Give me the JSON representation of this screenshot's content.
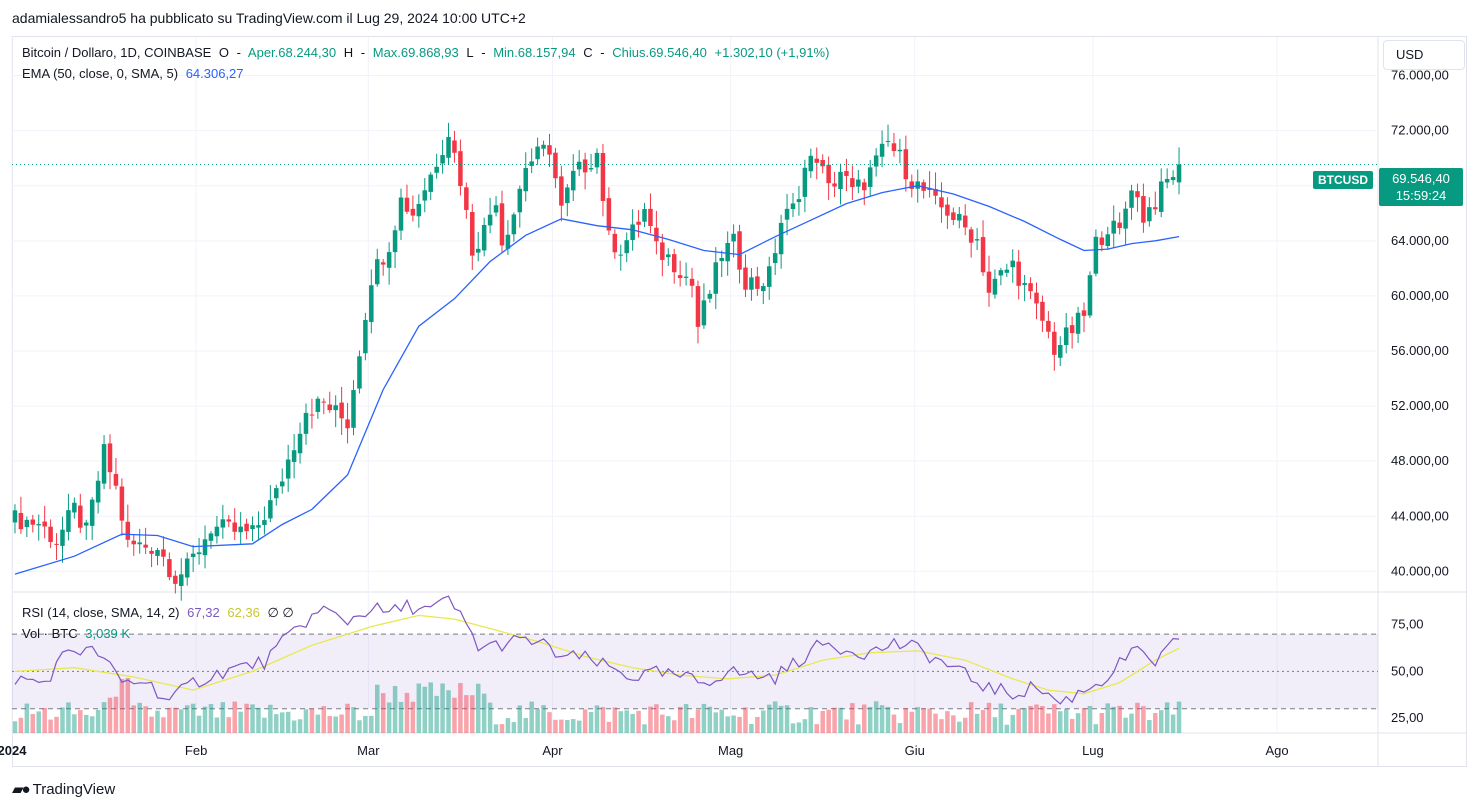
{
  "publisher_line": "adamialessandro5 ha pubblicato su TradingView.com il Lug 29, 2024 10:00 UTC+2",
  "legend": {
    "symbol": "Bitcoin / Dollaro, 1D, COINBASE",
    "o_label": "O",
    "open": "Aper.68.244,30",
    "h_label": "H",
    "high": "Max.69.868,93",
    "l_label": "L",
    "low": "Min.68.157,94",
    "c_label": "C",
    "close": "Chius.69.546,40",
    "change": "+1.302,10 (+1,91%)",
    "ema_label": "EMA (50, close, 0, SMA, 5)",
    "ema_value": "64.306,27",
    "rsi_label": "RSI (14, close, SMA, 14, 2)",
    "rsi_value": "67,32",
    "rsi_ma_value": "62,36",
    "rsi_extra": "∅ ∅",
    "vol_label": "Vol · BTC",
    "vol_value": "3,039 K"
  },
  "currency_button": "USD",
  "symbol_tag": "BTCUSD",
  "price_tag": {
    "price": "69.546,40",
    "countdown": "15:59:24"
  },
  "logo_text": "TradingView",
  "colors": {
    "up": "#089981",
    "down": "#f23645",
    "ema": "#2962ff",
    "rsi": "#7e57c2",
    "rsi_ma": "#e8e84f"
  },
  "chart_data": [
    {
      "type": "candlestick",
      "title": "Bitcoin / Dollaro, 1D, COINBASE",
      "y_ticks": [
        "76.000,00",
        "72.000,00",
        "68.000,00",
        "64.000,00",
        "60.000,00",
        "56.000,00",
        "52.000,00",
        "48.000,00",
        "44.000,00",
        "40.000,00"
      ],
      "ylim": [
        38500,
        78800
      ],
      "x_labels": [
        "2024",
        "Feb",
        "Mar",
        "Apr",
        "Mag",
        "Giu",
        "Lug",
        "Ago"
      ],
      "x_label_days": [
        0,
        31,
        60,
        91,
        121,
        152,
        182,
        213
      ],
      "last_price": 69546.4,
      "close_path": [
        [
          0,
          43800
        ],
        [
          4,
          43500
        ],
        [
          7,
          42200
        ],
        [
          10,
          44500
        ],
        [
          12,
          42800
        ],
        [
          15,
          48600
        ],
        [
          17,
          46000
        ],
        [
          19,
          41900
        ],
        [
          24,
          41800
        ],
        [
          27,
          39600
        ],
        [
          29,
          40200
        ],
        [
          33,
          43200
        ],
        [
          40,
          42700
        ],
        [
          44,
          45600
        ],
        [
          46,
          48100
        ],
        [
          49,
          51800
        ],
        [
          52,
          52200
        ],
        [
          56,
          50800
        ],
        [
          60,
          61400
        ],
        [
          63,
          63800
        ],
        [
          65,
          67000
        ],
        [
          67,
          66000
        ],
        [
          70,
          68800
        ],
        [
          73,
          72000
        ],
        [
          75,
          68500
        ],
        [
          77,
          63400
        ],
        [
          79,
          64800
        ],
        [
          81,
          67200
        ],
        [
          82,
          64000
        ],
        [
          84,
          66100
        ],
        [
          86,
          69500
        ],
        [
          88,
          70200
        ],
        [
          90,
          70800
        ],
        [
          92,
          66200
        ],
        [
          94,
          68700
        ],
        [
          96,
          69500
        ],
        [
          98,
          70400
        ],
        [
          100,
          64100
        ],
        [
          102,
          63500
        ],
        [
          104,
          64600
        ],
        [
          106,
          66200
        ],
        [
          108,
          63300
        ],
        [
          110,
          62800
        ],
        [
          112,
          62000
        ],
        [
          114,
          60800
        ],
        [
          115,
          57800
        ],
        [
          117,
          60300
        ],
        [
          119,
          63100
        ],
        [
          121,
          63800
        ],
        [
          123,
          61200
        ],
        [
          125,
          60800
        ],
        [
          127,
          61500
        ],
        [
          129,
          65400
        ],
        [
          131,
          66300
        ],
        [
          133,
          69200
        ],
        [
          135,
          70200
        ],
        [
          137,
          67700
        ],
        [
          139,
          69100
        ],
        [
          141,
          67500
        ],
        [
          143,
          68300
        ],
        [
          145,
          69700
        ],
        [
          147,
          71100
        ],
        [
          149,
          70000
        ],
        [
          151,
          68400
        ],
        [
          153,
          67600
        ],
        [
          155,
          66600
        ],
        [
          157,
          66200
        ],
        [
          160,
          64900
        ],
        [
          162,
          64100
        ],
        [
          164,
          60300
        ],
        [
          166,
          61500
        ],
        [
          168,
          62300
        ],
        [
          170,
          60600
        ],
        [
          173,
          58200
        ],
        [
          175,
          56200
        ],
        [
          177,
          57000
        ],
        [
          180,
          58600
        ],
        [
          182,
          63800
        ],
        [
          184,
          65100
        ],
        [
          186,
          64600
        ],
        [
          188,
          68200
        ],
        [
          190,
          65800
        ],
        [
          192,
          66900
        ],
        [
          194,
          68300
        ],
        [
          196,
          69546
        ]
      ],
      "ema_path": [
        [
          0,
          39800
        ],
        [
          10,
          41100
        ],
        [
          18,
          42700
        ],
        [
          24,
          42600
        ],
        [
          30,
          41800
        ],
        [
          40,
          42000
        ],
        [
          45,
          43400
        ],
        [
          50,
          44500
        ],
        [
          56,
          47000
        ],
        [
          62,
          53200
        ],
        [
          68,
          57800
        ],
        [
          74,
          59800
        ],
        [
          80,
          62500
        ],
        [
          86,
          64400
        ],
        [
          92,
          65600
        ],
        [
          98,
          65100
        ],
        [
          104,
          64800
        ],
        [
          110,
          64100
        ],
        [
          116,
          63300
        ],
        [
          122,
          63000
        ],
        [
          128,
          64300
        ],
        [
          134,
          65500
        ],
        [
          140,
          66700
        ],
        [
          146,
          67500
        ],
        [
          152,
          68000
        ],
        [
          158,
          67400
        ],
        [
          164,
          66500
        ],
        [
          170,
          65400
        ],
        [
          176,
          64100
        ],
        [
          180,
          63300
        ],
        [
          184,
          63400
        ],
        [
          188,
          63800
        ],
        [
          192,
          64000
        ],
        [
          196,
          64306
        ]
      ],
      "ema_value": 64306.27
    },
    {
      "type": "line",
      "title": "RSI (14, close, SMA, 14, 2)",
      "y_ticks": [
        "75,00",
        "50,00",
        "25,00"
      ],
      "ylim": [
        17,
        92
      ],
      "bands": [
        30,
        50,
        70
      ],
      "rsi_path": [
        [
          0,
          46
        ],
        [
          5,
          44
        ],
        [
          9,
          62
        ],
        [
          14,
          60
        ],
        [
          18,
          44
        ],
        [
          22,
          45
        ],
        [
          26,
          34
        ],
        [
          30,
          44
        ],
        [
          36,
          51
        ],
        [
          42,
          55
        ],
        [
          48,
          75
        ],
        [
          52,
          83
        ],
        [
          56,
          77
        ],
        [
          60,
          84
        ],
        [
          63,
          81
        ],
        [
          66,
          85
        ],
        [
          70,
          83
        ],
        [
          73,
          88
        ],
        [
          76,
          75
        ],
        [
          78,
          63
        ],
        [
          81,
          64
        ],
        [
          84,
          66
        ],
        [
          88,
          66
        ],
        [
          92,
          58
        ],
        [
          96,
          57
        ],
        [
          100,
          52
        ],
        [
          104,
          47
        ],
        [
          108,
          49
        ],
        [
          112,
          47
        ],
        [
          116,
          44
        ],
        [
          120,
          50
        ],
        [
          124,
          48
        ],
        [
          128,
          47
        ],
        [
          132,
          56
        ],
        [
          136,
          65
        ],
        [
          140,
          62
        ],
        [
          144,
          60
        ],
        [
          148,
          65
        ],
        [
          152,
          62
        ],
        [
          156,
          55
        ],
        [
          160,
          48
        ],
        [
          164,
          41
        ],
        [
          168,
          38
        ],
        [
          172,
          42
        ],
        [
          176,
          33
        ],
        [
          180,
          40
        ],
        [
          184,
          47
        ],
        [
          188,
          61
        ],
        [
          192,
          55
        ],
        [
          196,
          67.32
        ]
      ],
      "rsi_ma_path": [
        [
          0,
          50
        ],
        [
          10,
          52
        ],
        [
          20,
          47
        ],
        [
          30,
          40
        ],
        [
          40,
          50
        ],
        [
          50,
          64
        ],
        [
          60,
          74
        ],
        [
          68,
          80
        ],
        [
          74,
          78
        ],
        [
          80,
          73
        ],
        [
          88,
          66
        ],
        [
          96,
          58
        ],
        [
          104,
          52
        ],
        [
          112,
          48
        ],
        [
          120,
          46
        ],
        [
          128,
          48
        ],
        [
          136,
          56
        ],
        [
          144,
          60
        ],
        [
          152,
          61
        ],
        [
          160,
          56
        ],
        [
          168,
          46
        ],
        [
          174,
          40
        ],
        [
          180,
          38
        ],
        [
          186,
          44
        ],
        [
          192,
          56
        ],
        [
          196,
          62.36
        ]
      ],
      "rsi_value": 67.32,
      "rsi_ma_value": 62.36
    },
    {
      "type": "bar",
      "title": "Vol · BTC",
      "last_value": "3,039 K"
    }
  ]
}
